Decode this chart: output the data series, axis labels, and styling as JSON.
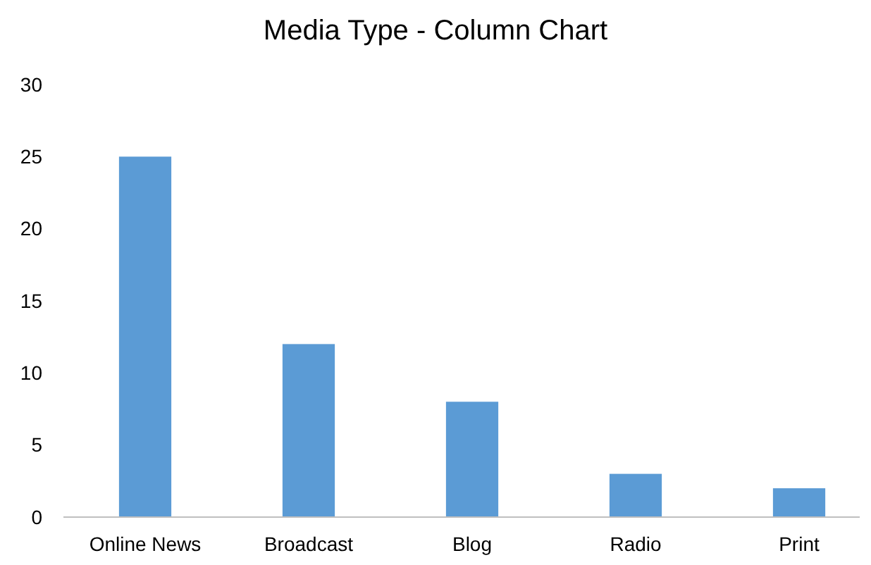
{
  "chart_data": {
    "type": "bar",
    "title": "Media Type - Column Chart",
    "categories": [
      "Online News",
      "Broadcast",
      "Blog",
      "Radio",
      "Print"
    ],
    "values": [
      25,
      12,
      8,
      3,
      2
    ],
    "color": "#5b9bd5",
    "ylim": [
      0,
      30
    ],
    "yticks": [
      0,
      5,
      10,
      15,
      20,
      25,
      30
    ],
    "grid": false
  }
}
